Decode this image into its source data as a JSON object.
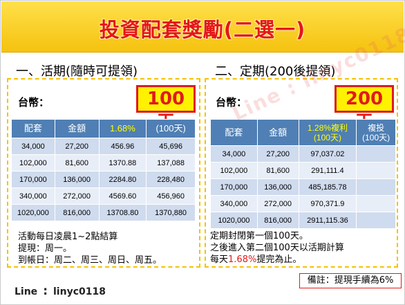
{
  "title": "投資配套獎勵(二選一)",
  "watermark": "Line : linyc0118",
  "left": {
    "heading": "一、活期(隨時可提領)",
    "currency_label": "台幣：",
    "badge": "100天",
    "columns": [
      "配套",
      "金額",
      "1.68%",
      "(100天)"
    ],
    "rows": [
      [
        "34,000",
        "27,200",
        "456.96",
        "45,696"
      ],
      [
        "102,000",
        "81,600",
        "1370.88",
        "137,088"
      ],
      [
        "170,000",
        "136,000",
        "2284.80",
        "228,480"
      ],
      [
        "340,000",
        "272,000",
        "4569.60",
        "456,960"
      ],
      [
        "1020,000",
        "816,000",
        "13708.80",
        "1370,880"
      ]
    ],
    "notes": {
      "line1": "活動每日凌晨1~2點結算",
      "line2": "提現：周一。",
      "line3": "到帳日：周二、周三、周日、周五。"
    }
  },
  "right": {
    "heading": "二、定期(200後提領)",
    "currency_label": "台幣：",
    "badge": "200天",
    "columns": [
      "配套",
      "金額",
      "1.28%複利\n(100天)",
      "複投\n(100天)"
    ],
    "col3_line1": "1.28%複利",
    "col3_line2": "(100天)",
    "col4_line1": "複投",
    "col4_line2": "(100天)",
    "rows": [
      [
        "34,000",
        "27,200",
        "97,037.02",
        ""
      ],
      [
        "102,000",
        "81,600",
        "291,111.4",
        ""
      ],
      [
        "170,000",
        "136,000",
        "485,185.78",
        ""
      ],
      [
        "340,000",
        "272,000",
        "970,371.9",
        ""
      ],
      [
        "1020,000",
        "816,000",
        "2911,115.36",
        ""
      ]
    ],
    "notes": {
      "line1": "定期封閉第一個100天。",
      "line2": "之後進入第二個100天以活期計算",
      "line3_pre": "每天",
      "line3_rate": "1.68%",
      "line3_post": "提完為止。"
    }
  },
  "remark": "備註：提現手續為6%",
  "line_label": "Line",
  "line_colon": ":",
  "line_handle": "linyc0118"
}
